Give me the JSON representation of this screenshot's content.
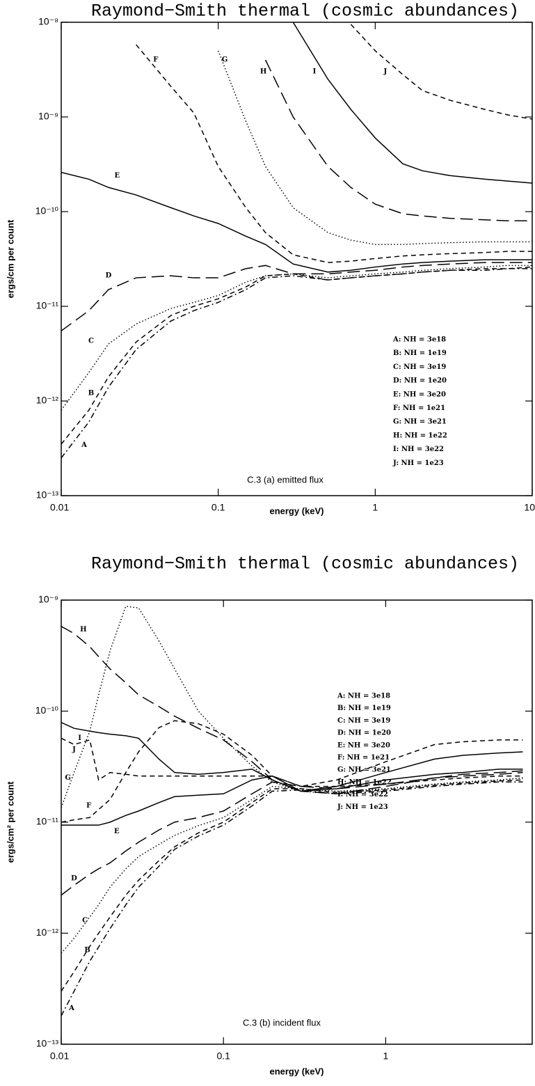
{
  "chart_data": [
    {
      "type": "line",
      "title": "Raymond−Smith thermal (cosmic abundances)",
      "x_label": "energy (keV)",
      "y_label": "ergs/cm per count",
      "caption": "C.3 (a) emitted flux",
      "log_x": true,
      "log_y": true,
      "xlim": [
        0.01,
        10
      ],
      "xticks": [
        0.01,
        0.1,
        1,
        10
      ],
      "ylim": [
        1e-13,
        1e-08
      ],
      "yticks": [
        {
          "value": 1e-08,
          "label": "10⁻⁸"
        },
        {
          "value": 1e-09,
          "label": "10⁻⁹"
        },
        {
          "value": 1e-10,
          "label": "10⁻¹⁰"
        },
        {
          "value": 1e-11,
          "label": "10⁻¹¹"
        },
        {
          "value": 1e-12,
          "label": "10⁻¹²"
        },
        {
          "value": 1e-13,
          "label": "10⁻¹³"
        }
      ],
      "x": [
        0.01,
        0.015,
        0.02,
        0.03,
        0.05,
        0.07,
        0.1,
        0.15,
        0.2,
        0.3,
        0.5,
        0.7,
        1,
        1.5,
        2,
        3,
        5,
        7,
        10
      ],
      "series": [
        {
          "name": "A: NH = 3e18",
          "color": "#000000",
          "line_style": "dash-dot",
          "values": [
            2.5e-13,
            6e-13,
            1.4e-12,
            3.5e-12,
            7e-12,
            9e-12,
            1.1e-11,
            1.5e-11,
            2e-11,
            2.1e-11,
            1.9e-11,
            2e-11,
            2.1e-11,
            2.2e-11,
            2.3e-11,
            2.4e-11,
            2.4e-11,
            2.5e-11,
            2.5e-11
          ]
        },
        {
          "name": "B: NH = 1e19",
          "color": "#000000",
          "line_style": "dashed",
          "values": [
            3.5e-13,
            8e-13,
            1.8e-12,
            4.2e-12,
            8e-12,
            1e-11,
            1.2e-11,
            1.6e-11,
            2.1e-11,
            2.2e-11,
            1.9e-11,
            2e-11,
            2.1e-11,
            2.2e-11,
            2.3e-11,
            2.4e-11,
            2.5e-11,
            2.5e-11,
            2.6e-11
          ]
        },
        {
          "name": "C: NH = 3e19",
          "color": "#000000",
          "line_style": "dotted",
          "values": [
            8e-13,
            2e-12,
            4e-12,
            6.5e-12,
            9.5e-12,
            1.1e-11,
            1.3e-11,
            1.8e-11,
            2.1e-11,
            2.2e-11,
            2e-11,
            2.1e-11,
            2.2e-11,
            2.3e-11,
            2.4e-11,
            2.5e-11,
            2.6e-11,
            2.7e-11,
            2.7e-11
          ]
        },
        {
          "name": "D: NH = 1e20",
          "color": "#000000",
          "line_style": "long-dashed",
          "values": [
            5.5e-12,
            9e-12,
            1.5e-11,
            2e-11,
            2.1e-11,
            2e-11,
            2e-11,
            2.5e-11,
            2.7e-11,
            2.2e-11,
            2.2e-11,
            2.3e-11,
            2.4e-11,
            2.6e-11,
            2.7e-11,
            2.8e-11,
            2.9e-11,
            2.9e-11,
            2.9e-11
          ]
        },
        {
          "name": "E: NH = 3e20",
          "color": "#000000",
          "line_style": "solid",
          "values": [
            2.6e-10,
            2.2e-10,
            1.8e-10,
            1.5e-10,
            1.1e-10,
            9e-11,
            7.5e-11,
            5.5e-11,
            4.5e-11,
            2.8e-11,
            2.3e-11,
            2.4e-11,
            2.6e-11,
            2.8e-11,
            2.9e-11,
            3e-11,
            3.1e-11,
            3.1e-11,
            3.1e-11
          ]
        },
        {
          "name": "F: NH = 1e21",
          "color": "#000000",
          "line_style": "dashed",
          "values": [
            null,
            null,
            null,
            5.8e-09,
            2.1e-09,
            1.1e-09,
            3e-10,
            1.1e-10,
            6e-11,
            3.5e-11,
            2.9e-11,
            3e-11,
            3.2e-11,
            3.4e-11,
            3.5e-11,
            3.6e-11,
            3.7e-11,
            3.8e-11,
            3.8e-11
          ]
        },
        {
          "name": "G: NH = 3e21",
          "color": "#000000",
          "line_style": "dotted",
          "values": [
            null,
            null,
            null,
            null,
            null,
            null,
            5e-09,
            9e-10,
            3e-10,
            1.1e-10,
            6e-11,
            5e-11,
            4.5e-11,
            4.5e-11,
            4.6e-11,
            4.7e-11,
            4.8e-11,
            4.8e-11,
            4.8e-11
          ]
        },
        {
          "name": "H: NH = 1e22",
          "color": "#000000",
          "line_style": "long-dashed",
          "values": [
            null,
            null,
            null,
            null,
            null,
            null,
            null,
            null,
            4e-09,
            1e-09,
            3e-10,
            1.8e-10,
            1.2e-10,
            9.5e-11,
            9e-11,
            8.5e-11,
            8.2e-11,
            8e-11,
            8e-11
          ]
        },
        {
          "name": "I: NH = 3e22",
          "color": "#000000",
          "line_style": "solid",
          "values": [
            null,
            null,
            null,
            null,
            null,
            null,
            null,
            null,
            null,
            1e-08,
            2.5e-09,
            1.2e-09,
            6e-10,
            3.2e-10,
            2.7e-10,
            2.4e-10,
            2.2e-10,
            2.1e-10,
            2e-10
          ]
        },
        {
          "name": "J: NH = 1e23",
          "color": "#000000",
          "line_style": "dashed",
          "values": [
            null,
            null,
            null,
            null,
            null,
            null,
            null,
            null,
            null,
            null,
            null,
            9.5e-09,
            5e-09,
            2.8e-09,
            1.9e-09,
            1.5e-09,
            1.2e-09,
            1.05e-09,
            9.5e-10
          ]
        }
      ],
      "annotations": [
        {
          "text": "A",
          "x": 0.014,
          "y": 3.4e-13
        },
        {
          "text": "B",
          "x": 0.0155,
          "y": 1.2e-12
        },
        {
          "text": "C",
          "x": 0.0155,
          "y": 4.3e-12
        },
        {
          "text": "D",
          "x": 0.02,
          "y": 2.1e-11
        },
        {
          "text": "E",
          "x": 0.0227,
          "y": 2.4e-10
        },
        {
          "text": "F",
          "x": 0.04,
          "y": 4e-09
        },
        {
          "text": "G",
          "x": 0.11,
          "y": 4e-09
        },
        {
          "text": "H",
          "x": 0.194,
          "y": 3e-09
        },
        {
          "text": "I",
          "x": 0.41,
          "y": 3e-09
        },
        {
          "text": "J",
          "x": 1.16,
          "y": 3e-09
        }
      ]
    },
    {
      "type": "line",
      "title": "Raymond−Smith thermal (cosmic abundances)",
      "x_label": "energy (keV)",
      "y_label": "ergs/cm² per count",
      "caption": "C.3 (b) incident flux",
      "log_x": true,
      "log_y": true,
      "xlim": [
        0.01,
        8
      ],
      "xticks": [
        0.01,
        0.1,
        1
      ],
      "ylim": [
        1e-13,
        1e-09
      ],
      "yticks": [
        {
          "value": 1e-09,
          "label": "10⁻⁹"
        },
        {
          "value": 1e-10,
          "label": "10⁻¹⁰"
        },
        {
          "value": 1e-11,
          "label": "10⁻¹¹"
        },
        {
          "value": 1e-12,
          "label": "10⁻¹²"
        },
        {
          "value": 1e-13,
          "label": "10⁻¹³"
        }
      ],
      "x": [
        0.01,
        0.012,
        0.015,
        0.017,
        0.02,
        0.025,
        0.03,
        0.04,
        0.05,
        0.07,
        0.1,
        0.15,
        0.2,
        0.3,
        0.5,
        1,
        2,
        3,
        5,
        7
      ],
      "series": [
        {
          "name": "A: NH = 3e18",
          "color": "#000000",
          "line_style": "dash-dot",
          "values": [
            1.8e-13,
            3e-13,
            5.6e-13,
            7.5e-13,
            1.1e-12,
            1.8e-12,
            2.6e-12,
            4e-12,
            5.7e-12,
            7.5e-12,
            9.4e-12,
            1.4e-11,
            1.9e-11,
            1.95e-11,
            1.8e-11,
            1.9e-11,
            2.1e-11,
            2.2e-11,
            2.3e-11,
            2.3e-11
          ]
        },
        {
          "name": "B: NH = 1e19",
          "color": "#000000",
          "line_style": "dashed",
          "values": [
            3e-13,
            4.5e-13,
            7.6e-13,
            1e-12,
            1.4e-12,
            2.2e-12,
            3e-12,
            4.5e-12,
            6e-12,
            8e-12,
            1e-11,
            1.5e-11,
            2e-11,
            2e-11,
            1.85e-11,
            1.95e-11,
            2.15e-11,
            2.25e-11,
            2.35e-11,
            2.4e-11
          ]
        },
        {
          "name": "C: NH = 3e19",
          "color": "#000000",
          "line_style": "dotted",
          "values": [
            6.6e-13,
            9e-13,
            1.4e-12,
            1.8e-12,
            2.6e-12,
            3.8e-12,
            4.9e-12,
            6.3e-12,
            7.6e-12,
            9.3e-12,
            1.1e-11,
            1.6e-11,
            2.1e-11,
            2e-11,
            1.9e-11,
            2e-11,
            2.2e-11,
            2.3e-11,
            2.4e-11,
            2.5e-11
          ]
        },
        {
          "name": "D: NH = 1e20",
          "color": "#000000",
          "line_style": "long-dashed",
          "values": [
            2.2e-12,
            2.7e-12,
            3.4e-12,
            3.8e-12,
            4.3e-12,
            5.5e-12,
            6.6e-12,
            8.5e-12,
            1e-11,
            1.1e-11,
            1.26e-11,
            1.8e-11,
            2.3e-11,
            2.1e-11,
            2e-11,
            2.2e-11,
            2.5e-11,
            2.6e-11,
            2.7e-11,
            2.8e-11
          ]
        },
        {
          "name": "E: NH = 3e20",
          "color": "#000000",
          "line_style": "solid",
          "values": [
            9.4e-12,
            9.4e-12,
            9.4e-12,
            9.4e-12,
            1e-11,
            1.15e-11,
            1.26e-11,
            1.5e-11,
            1.7e-11,
            1.75e-11,
            1.8e-11,
            2.4e-11,
            2.6e-11,
            1.9e-11,
            2e-11,
            2.4e-11,
            2.7e-11,
            2.8e-11,
            3e-11,
            3e-11
          ]
        },
        {
          "name": "F: NH = 1e21",
          "color": "#000000",
          "line_style": "dashed",
          "values": [
            1e-11,
            1.05e-11,
            1.1e-11,
            1.3e-11,
            1.6e-11,
            2.8e-11,
            4.3e-11,
            7.1e-11,
            8.2e-11,
            7.7e-11,
            6.2e-11,
            4e-11,
            2.6e-11,
            2.1e-11,
            2.4e-11,
            3.5e-11,
            5e-11,
            5.3e-11,
            5.5e-11,
            5.5e-11
          ]
        },
        {
          "name": "G: NH = 3e21",
          "color": "#000000",
          "line_style": "dotted",
          "values": [
            1.35e-11,
            2.8e-11,
            6.6e-11,
            1.4e-10,
            3.5e-10,
            8.8e-10,
            8.5e-10,
            4.3e-10,
            2.4e-10,
            1e-10,
            5.7e-11,
            3.2e-11,
            2.3e-11,
            1.9e-11,
            1.8e-11,
            2e-11,
            2.2e-11,
            2.3e-11,
            2.4e-11,
            2.5e-11
          ]
        },
        {
          "name": "H: NH = 1e22",
          "color": "#000000",
          "line_style": "long-dashed",
          "values": [
            5.8e-10,
            5e-10,
            3.8e-10,
            3.1e-10,
            2.4e-10,
            1.8e-10,
            1.4e-10,
            1.1e-10,
            9e-11,
            7e-11,
            5.5e-11,
            3.5e-11,
            2.4e-11,
            1.9e-11,
            1.8e-11,
            2.1e-11,
            2.5e-11,
            2.7e-11,
            2.8e-11,
            2.9e-11
          ]
        },
        {
          "name": "I: NH = 3e22",
          "color": "#000000",
          "line_style": "solid",
          "values": [
            7.9e-11,
            7e-11,
            6.6e-11,
            6.4e-11,
            6.2e-11,
            6e-11,
            5.7e-11,
            3.7e-11,
            2.8e-11,
            2.7e-11,
            2.8e-11,
            3e-11,
            2.4e-11,
            1.9e-11,
            2.1e-11,
            2.8e-11,
            3.7e-11,
            4e-11,
            4.2e-11,
            4.3e-11
          ]
        },
        {
          "name": "J: NH = 1e23",
          "color": "#000000",
          "line_style": "dashed",
          "values": [
            5.7e-11,
            5e-11,
            5.5e-11,
            2.4e-11,
            2.8e-11,
            2.7e-11,
            2.6e-11,
            2.6e-11,
            2.6e-11,
            2.6e-11,
            2.6e-11,
            2.6e-11,
            2.6e-11,
            2.1e-11,
            2.1e-11,
            2.2e-11,
            2.4e-11,
            2.5e-11,
            2.6e-11,
            2.6e-11
          ]
        }
      ],
      "annotations": [
        {
          "text": "H",
          "x": 0.0137,
          "y": 5.4e-10
        },
        {
          "text": "I",
          "x": 0.013,
          "y": 5.7e-11
        },
        {
          "text": "J",
          "x": 0.012,
          "y": 4.5e-11
        },
        {
          "text": "G",
          "x": 0.011,
          "y": 2.5e-11
        },
        {
          "text": "F",
          "x": 0.0148,
          "y": 1.4e-11
        },
        {
          "text": "E",
          "x": 0.022,
          "y": 8.2e-12
        },
        {
          "text": "D",
          "x": 0.012,
          "y": 3.1e-12
        },
        {
          "text": "C",
          "x": 0.014,
          "y": 1.3e-12
        },
        {
          "text": "B",
          "x": 0.0145,
          "y": 7e-13
        },
        {
          "text": "A",
          "x": 0.0116,
          "y": 2.1e-13
        }
      ]
    }
  ]
}
